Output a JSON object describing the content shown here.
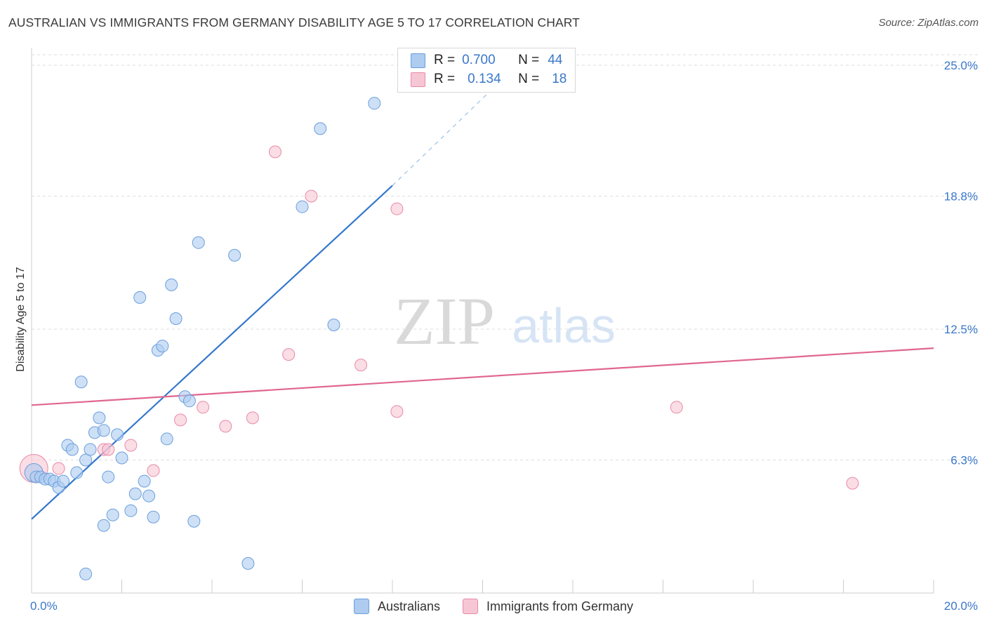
{
  "title": "AUSTRALIAN VS IMMIGRANTS FROM GERMANY DISABILITY AGE 5 TO 17 CORRELATION CHART",
  "source": "Source: ZipAtlas.com",
  "watermark": {
    "zip": "ZIP",
    "atlas": "atlas"
  },
  "legend": {
    "r_label": "R =",
    "n_label": "N =",
    "series1": {
      "r": "0.700",
      "n": "44"
    },
    "series2": {
      "r": "0.134",
      "n": "18"
    }
  },
  "bottom_legend": {
    "series1": "Australians",
    "series2": "Immigrants from Germany"
  },
  "colors": {
    "blue_fill": "#aecbf0",
    "blue_stroke": "#6a9fdc",
    "blue_line": "#3377cc",
    "pink_fill": "#f7c6d4",
    "pink_stroke": "#e88aa8",
    "pink_line": "#e06690",
    "axis_text": "#3a78c9",
    "grid": "#dddddd"
  },
  "chart_data": {
    "type": "scatter",
    "title": "AUSTRALIAN VS IMMIGRANTS FROM GERMANY DISABILITY AGE 5 TO 17 CORRELATION CHART",
    "xlabel": "",
    "ylabel": "Disability Age 5 to 17",
    "xlim": [
      0,
      20
    ],
    "ylim": [
      0,
      25.5
    ],
    "x_tick_labels": [
      "0.0%",
      "20.0%"
    ],
    "x_ticks": [
      0,
      2,
      4,
      6,
      8,
      10,
      12,
      14,
      16,
      18,
      20
    ],
    "y_ticks": [
      6.3,
      12.5,
      18.8,
      25.0
    ],
    "y_tick_labels": [
      "6.3%",
      "12.5%",
      "18.8%",
      "25.0%"
    ],
    "grid": true,
    "series": [
      {
        "name": "Australians",
        "r": 0.7,
        "n": 44,
        "points": [
          [
            0.05,
            5.7
          ],
          [
            0.1,
            5.5
          ],
          [
            0.2,
            5.5
          ],
          [
            0.3,
            5.4
          ],
          [
            0.4,
            5.4
          ],
          [
            0.5,
            5.3
          ],
          [
            0.6,
            5.0
          ],
          [
            0.7,
            5.3
          ],
          [
            0.8,
            7.0
          ],
          [
            0.9,
            6.8
          ],
          [
            1.0,
            5.7
          ],
          [
            1.1,
            10.0
          ],
          [
            1.2,
            6.3
          ],
          [
            1.3,
            6.8
          ],
          [
            1.4,
            7.6
          ],
          [
            1.5,
            8.3
          ],
          [
            1.6,
            7.7
          ],
          [
            1.7,
            5.5
          ],
          [
            1.8,
            3.7
          ],
          [
            1.9,
            7.5
          ],
          [
            2.0,
            6.4
          ],
          [
            2.2,
            3.9
          ],
          [
            2.3,
            4.7
          ],
          [
            2.4,
            14.0
          ],
          [
            2.5,
            5.3
          ],
          [
            2.6,
            4.6
          ],
          [
            2.7,
            3.6
          ],
          [
            2.8,
            11.5
          ],
          [
            2.9,
            11.7
          ],
          [
            3.0,
            7.3
          ],
          [
            3.1,
            14.6
          ],
          [
            3.2,
            13.0
          ],
          [
            3.4,
            9.3
          ],
          [
            3.5,
            9.1
          ],
          [
            3.6,
            3.4
          ],
          [
            3.7,
            16.6
          ],
          [
            4.5,
            16.0
          ],
          [
            4.8,
            1.4
          ],
          [
            6.0,
            18.3
          ],
          [
            6.4,
            22.0
          ],
          [
            6.7,
            12.7
          ],
          [
            7.6,
            23.2
          ],
          [
            1.2,
            0.9
          ],
          [
            1.6,
            3.2
          ]
        ]
      },
      {
        "name": "Immigrants from Germany",
        "r": 0.134,
        "n": 18,
        "points": [
          [
            0.05,
            5.9
          ],
          [
            0.6,
            5.9
          ],
          [
            1.6,
            6.8
          ],
          [
            1.7,
            6.8
          ],
          [
            2.2,
            7.0
          ],
          [
            2.7,
            5.8
          ],
          [
            3.3,
            8.2
          ],
          [
            3.8,
            8.8
          ],
          [
            4.3,
            7.9
          ],
          [
            4.9,
            8.3
          ],
          [
            5.4,
            20.9
          ],
          [
            5.7,
            11.3
          ],
          [
            6.2,
            18.8
          ],
          [
            7.3,
            10.8
          ],
          [
            8.1,
            18.2
          ],
          [
            8.1,
            8.6
          ],
          [
            14.3,
            8.8
          ],
          [
            18.2,
            5.2
          ]
        ]
      }
    ],
    "trend_lines": [
      {
        "series": "Australians",
        "x": [
          0,
          8.0
        ],
        "y": [
          3.5,
          19.3
        ],
        "dashed_extension_to": [
          11.0,
          25.5
        ]
      },
      {
        "series": "Immigrants from Germany",
        "x": [
          0,
          20
        ],
        "y": [
          8.9,
          11.6
        ]
      }
    ]
  }
}
